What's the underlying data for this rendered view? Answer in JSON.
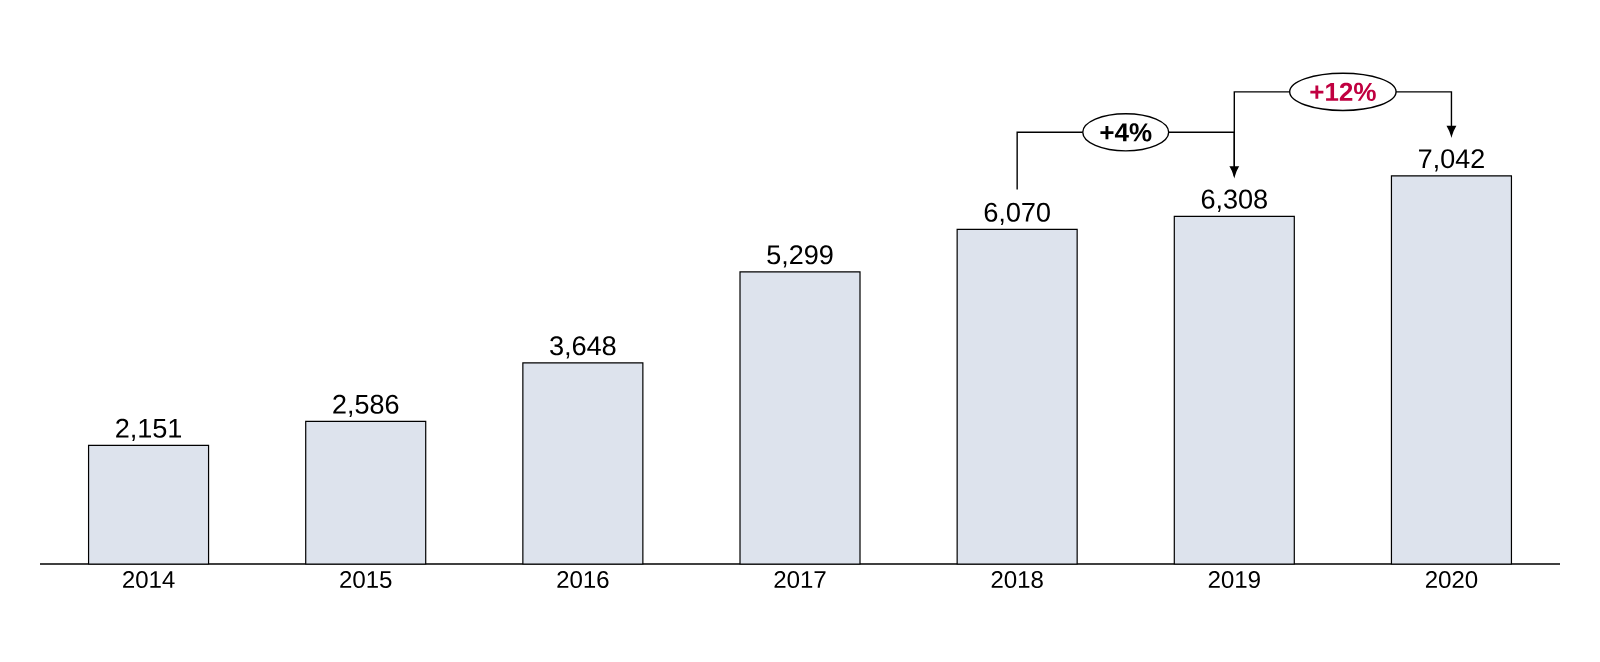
{
  "chart_data": {
    "type": "bar",
    "categories": [
      "2014",
      "2015",
      "2016",
      "2017",
      "2018",
      "2019",
      "2020"
    ],
    "values": [
      2151,
      2586,
      3648,
      5299,
      6070,
      6308,
      7042
    ],
    "color": "#dde3ed",
    "data_labels": true,
    "value_labels": [
      "2,151",
      "2,586",
      "3,648",
      "5,299",
      "6,070",
      "6,308",
      "7,042"
    ],
    "annotations": [
      "+4%",
      "+12%"
    ]
  }
}
